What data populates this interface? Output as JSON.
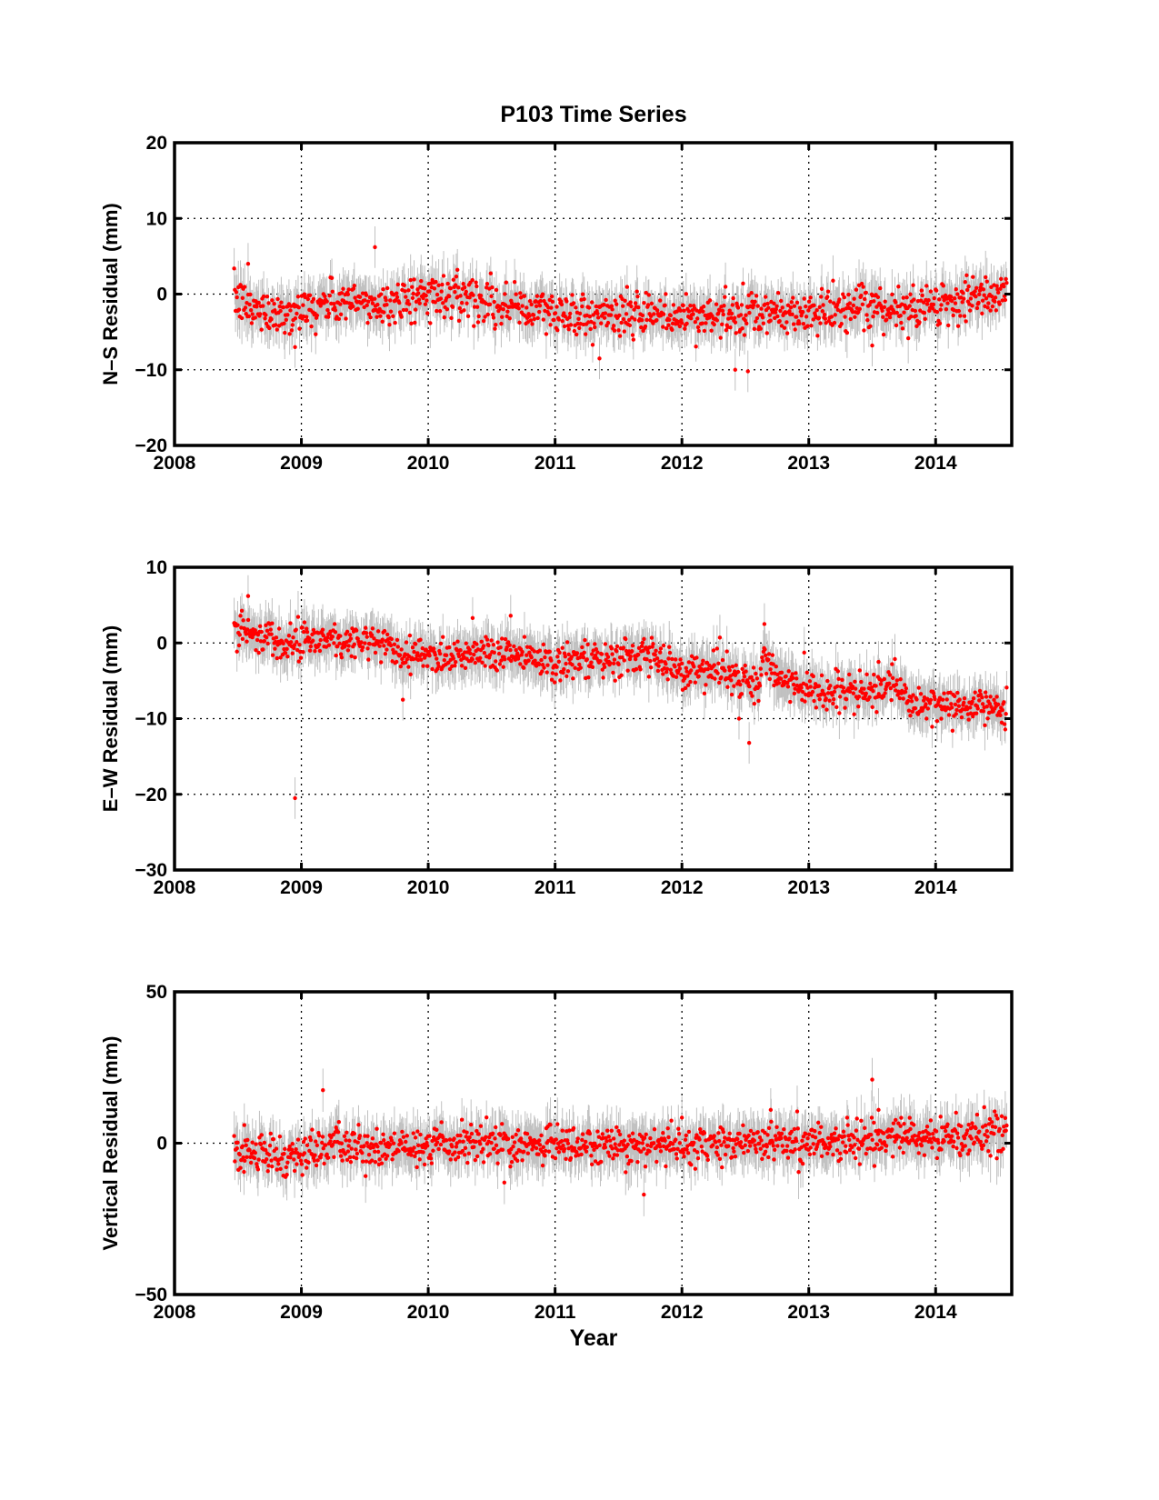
{
  "figure": {
    "title": "P103 Time Series",
    "xlabel": "Year"
  },
  "chart_data": [
    {
      "type": "scatter",
      "title": "P103 Time Series",
      "xlabel": "",
      "ylabel": "N–S Residual (mm)",
      "xlim": [
        2008,
        2014.6
      ],
      "ylim": [
        -20,
        20
      ],
      "x_ticks": [
        "2008",
        "2009",
        "2010",
        "2011",
        "2012",
        "2013",
        "2014"
      ],
      "y_ticks": [
        "20",
        "10",
        "0",
        "−10",
        "−20"
      ],
      "y_tick_values": [
        20,
        10,
        0,
        -10,
        -20
      ],
      "grid": true,
      "point_color": "#ff0000",
      "errorbar_color": "#c0c0c0",
      "trend": [
        [
          2008.47,
          -0.5
        ],
        [
          2008.6,
          -2.0
        ],
        [
          2008.9,
          -2.5
        ],
        [
          2009.3,
          -1.0
        ],
        [
          2009.6,
          -1.5
        ],
        [
          2009.9,
          -0.3
        ],
        [
          2010.3,
          0.0
        ],
        [
          2010.6,
          -1.5
        ],
        [
          2011.0,
          -2.5
        ],
        [
          2011.5,
          -2.8
        ],
        [
          2012.0,
          -3.0
        ],
        [
          2012.5,
          -2.8
        ],
        [
          2013.0,
          -2.5
        ],
        [
          2013.5,
          -2.0
        ],
        [
          2013.8,
          -2.0
        ],
        [
          2014.0,
          -1.0
        ],
        [
          2014.4,
          -0.5
        ],
        [
          2014.56,
          -0.2
        ]
      ],
      "scatter_std": 1.4,
      "errorbar_halfwidth": 2.5,
      "outliers": [
        [
          2009.58,
          6.2
        ],
        [
          2008.95,
          -7.0
        ],
        [
          2011.35,
          -8.5
        ],
        [
          2012.42,
          -10.0
        ],
        [
          2012.52,
          -10.2
        ],
        [
          2013.5,
          -6.8
        ],
        [
          2008.58,
          4.0
        ],
        [
          2010.23,
          3.2
        ]
      ]
    },
    {
      "type": "scatter",
      "title": "",
      "xlabel": "",
      "ylabel": "E–W Residual (mm)",
      "xlim": [
        2008,
        2014.6
      ],
      "ylim": [
        -30,
        10
      ],
      "x_ticks": [
        "2008",
        "2009",
        "2010",
        "2011",
        "2012",
        "2013",
        "2014"
      ],
      "y_ticks": [
        "10",
        "0",
        "−10",
        "−20",
        "−30"
      ],
      "y_tick_values": [
        10,
        0,
        -10,
        -20,
        -30
      ],
      "grid": true,
      "point_color": "#ff0000",
      "errorbar_color": "#c0c0c0",
      "trend": [
        [
          2008.47,
          2.0
        ],
        [
          2008.6,
          1.5
        ],
        [
          2008.8,
          0.5
        ],
        [
          2009.3,
          0.5
        ],
        [
          2009.6,
          0.0
        ],
        [
          2009.8,
          -1.5
        ],
        [
          2010.2,
          -1.5
        ],
        [
          2010.6,
          -1.0
        ],
        [
          2011.0,
          -2.5
        ],
        [
          2011.5,
          -2.5
        ],
        [
          2011.6,
          -1.0
        ],
        [
          2011.9,
          -3.0
        ],
        [
          2012.3,
          -4.0
        ],
        [
          2012.6,
          -5.5
        ],
        [
          2012.65,
          -1.0
        ],
        [
          2012.75,
          -5.0
        ],
        [
          2013.0,
          -6.0
        ],
        [
          2013.5,
          -7.0
        ],
        [
          2013.65,
          -5.0
        ],
        [
          2013.8,
          -8.0
        ],
        [
          2014.2,
          -8.5
        ],
        [
          2014.56,
          -8.8
        ]
      ],
      "scatter_std": 1.2,
      "errorbar_halfwidth": 2.5,
      "outliers": [
        [
          2008.95,
          -20.5
        ],
        [
          2008.58,
          6.2
        ],
        [
          2009.8,
          -7.5
        ],
        [
          2012.53,
          -13.2
        ],
        [
          2012.45,
          -10.0
        ],
        [
          2012.65,
          2.5
        ],
        [
          2013.55,
          -2.5
        ],
        [
          2010.65,
          3.6
        ],
        [
          2010.35,
          3.3
        ]
      ]
    },
    {
      "type": "scatter",
      "title": "",
      "xlabel": "Year",
      "ylabel": "Vertical Residual (mm)",
      "xlim": [
        2008,
        2014.6
      ],
      "ylim": [
        -50,
        50
      ],
      "x_ticks": [
        "2008",
        "2009",
        "2010",
        "2011",
        "2012",
        "2013",
        "2014"
      ],
      "y_ticks": [
        "50",
        "0",
        "−50"
      ],
      "y_tick_values": [
        50,
        0,
        -50
      ],
      "grid": true,
      "point_color": "#ff0000",
      "errorbar_color": "#c0c0c0",
      "trend": [
        [
          2008.47,
          -3.0
        ],
        [
          2008.9,
          -4.0
        ],
        [
          2009.3,
          -1.0
        ],
        [
          2009.8,
          -2.0
        ],
        [
          2010.3,
          0.0
        ],
        [
          2010.7,
          -1.0
        ],
        [
          2011.0,
          0.0
        ],
        [
          2011.5,
          -1.0
        ],
        [
          2012.0,
          0.0
        ],
        [
          2012.5,
          0.5
        ],
        [
          2013.0,
          0.0
        ],
        [
          2013.5,
          1.5
        ],
        [
          2014.0,
          2.0
        ],
        [
          2014.56,
          3.0
        ]
      ],
      "scatter_std": 3.2,
      "errorbar_halfwidth": 6.5,
      "outliers": [
        [
          2009.17,
          17.5
        ],
        [
          2013.5,
          21.0
        ],
        [
          2013.55,
          11.0
        ],
        [
          2011.7,
          -17.0
        ],
        [
          2010.6,
          -13.0
        ],
        [
          2008.55,
          6.0
        ],
        [
          2012.7,
          11.0
        ]
      ]
    }
  ]
}
